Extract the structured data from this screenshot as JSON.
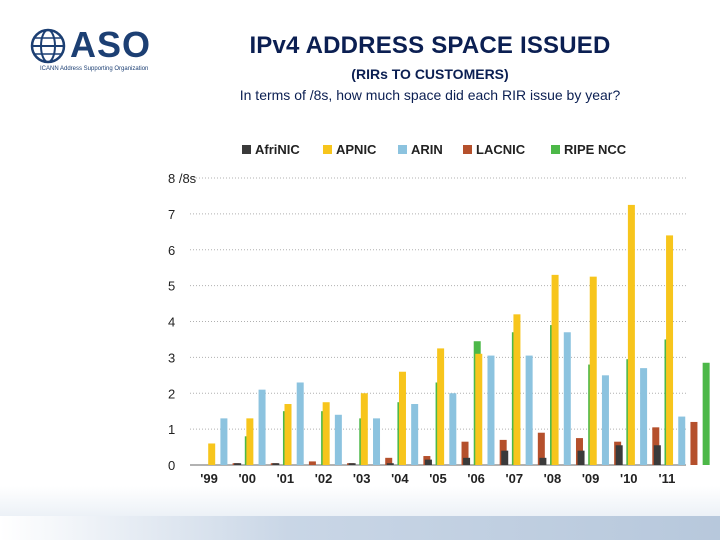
{
  "logo": {
    "text": "ASO",
    "subtext": "ICANN Address Supporting Organization"
  },
  "header": {
    "title": "IPv4 ADDRESS SPACE ISSUED",
    "subtitle": "(RIRs TO CUSTOMERS)",
    "description": "In terms of /8s, how much space did each RIR issue by year?"
  },
  "chart_data": {
    "type": "bar",
    "title": "IPv4 ADDRESS SPACE ISSUED",
    "ylabel": "/8s",
    "ylim": [
      0,
      8
    ],
    "yticks": [
      0,
      1,
      2,
      3,
      4,
      5,
      6,
      7,
      8
    ],
    "ytick_labels": [
      "0",
      "1",
      "2",
      "3",
      "4",
      "5",
      "6",
      "7",
      "8 /8s"
    ],
    "grid": true,
    "legend_position": "top",
    "categories": [
      "'99",
      "'00",
      "'01",
      "'02",
      "'03",
      "'04",
      "'05",
      "'06",
      "'07",
      "'08",
      "'09",
      "'10",
      "'11"
    ],
    "series": [
      {
        "name": "AfriNIC",
        "color": "#3a3a3a",
        "values": [
          0.0,
          0.05,
          0.05,
          0.0,
          0.05,
          0.05,
          0.15,
          0.2,
          0.4,
          0.2,
          0.4,
          0.55,
          0.55
        ]
      },
      {
        "name": "APNIC",
        "color": "#f7c51c",
        "values": [
          0.6,
          1.3,
          1.7,
          1.75,
          2.0,
          2.6,
          3.25,
          3.1,
          4.2,
          5.3,
          5.25,
          7.25,
          6.4
        ]
      },
      {
        "name": "ARIN",
        "color": "#8cc3df",
        "values": [
          1.3,
          2.1,
          2.3,
          1.4,
          1.3,
          1.7,
          2.0,
          3.05,
          3.05,
          3.7,
          2.5,
          2.7,
          1.35
        ]
      },
      {
        "name": "LACNIC",
        "color": "#b5502c",
        "values": [
          0.05,
          0.05,
          0.1,
          0.05,
          0.2,
          0.25,
          0.65,
          0.7,
          0.9,
          0.75,
          0.65,
          1.05,
          1.2
        ]
      },
      {
        "name": "RIPE NCC",
        "color": "#4cb848",
        "values": [
          0.8,
          1.5,
          1.5,
          1.3,
          1.75,
          2.3,
          3.45,
          3.7,
          3.9,
          2.8,
          2.95,
          3.5,
          2.85
        ]
      }
    ]
  }
}
